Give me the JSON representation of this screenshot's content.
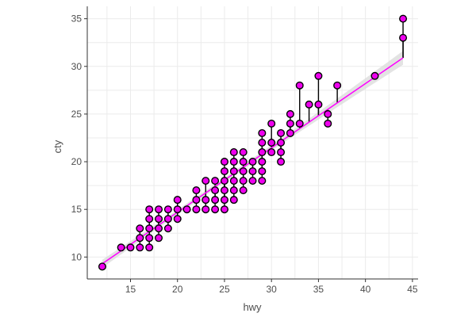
{
  "chart_data": {
    "type": "scatter",
    "title": "",
    "xlabel": "hwy",
    "ylabel": "cty",
    "xlim": [
      10.4,
      45.6
    ],
    "ylim": [
      7.7,
      36.3
    ],
    "x_ticks": [
      15,
      20,
      25,
      30,
      35,
      40,
      45
    ],
    "y_ticks": [
      10,
      15,
      20,
      25,
      30,
      35
    ],
    "x_tick_labels": [
      "15",
      "20",
      "25",
      "30",
      "35",
      "40",
      "45"
    ],
    "y_tick_labels": [
      "10",
      "15",
      "20",
      "25",
      "30",
      "35"
    ],
    "grid": true,
    "fit_line": {
      "method": "lm",
      "x_range": [
        12,
        44
      ],
      "y_range": [
        9.3,
        30.9
      ],
      "se_band": true
    },
    "points": [
      [
        12,
        9
      ],
      [
        14,
        11
      ],
      [
        15,
        11
      ],
      [
        16,
        11
      ],
      [
        16,
        12
      ],
      [
        16,
        13
      ],
      [
        17,
        11
      ],
      [
        17,
        12
      ],
      [
        17,
        13
      ],
      [
        17,
        14
      ],
      [
        17,
        15
      ],
      [
        18,
        12
      ],
      [
        18,
        13
      ],
      [
        18,
        14
      ],
      [
        18,
        15
      ],
      [
        19,
        13
      ],
      [
        19,
        14
      ],
      [
        19,
        15
      ],
      [
        20,
        14
      ],
      [
        20,
        15
      ],
      [
        20,
        16
      ],
      [
        21,
        15
      ],
      [
        22,
        15
      ],
      [
        22,
        16
      ],
      [
        22,
        17
      ],
      [
        23,
        15
      ],
      [
        23,
        16
      ],
      [
        23,
        18
      ],
      [
        24,
        15
      ],
      [
        24,
        16
      ],
      [
        24,
        17
      ],
      [
        24,
        18
      ],
      [
        25,
        15
      ],
      [
        25,
        16
      ],
      [
        25,
        17
      ],
      [
        25,
        18
      ],
      [
        25,
        19
      ],
      [
        25,
        20
      ],
      [
        26,
        16
      ],
      [
        26,
        17
      ],
      [
        26,
        18
      ],
      [
        26,
        19
      ],
      [
        26,
        20
      ],
      [
        26,
        21
      ],
      [
        27,
        17
      ],
      [
        27,
        18
      ],
      [
        27,
        19
      ],
      [
        27,
        20
      ],
      [
        27,
        21
      ],
      [
        28,
        18
      ],
      [
        28,
        19
      ],
      [
        28,
        20
      ],
      [
        29,
        18
      ],
      [
        29,
        19
      ],
      [
        29,
        20
      ],
      [
        29,
        21
      ],
      [
        29,
        22
      ],
      [
        29,
        23
      ],
      [
        30,
        21
      ],
      [
        30,
        22
      ],
      [
        30,
        24
      ],
      [
        31,
        20
      ],
      [
        31,
        21
      ],
      [
        31,
        22
      ],
      [
        31,
        23
      ],
      [
        32,
        23
      ],
      [
        32,
        24
      ],
      [
        32,
        25
      ],
      [
        33,
        24
      ],
      [
        33,
        28
      ],
      [
        34,
        26
      ],
      [
        35,
        26
      ],
      [
        35,
        29
      ],
      [
        36,
        24
      ],
      [
        36,
        25
      ],
      [
        37,
        28
      ],
      [
        41,
        29
      ],
      [
        44,
        33
      ],
      [
        44,
        35
      ]
    ],
    "point_fill": "#ee00ee",
    "point_stroke": "#000000",
    "line_color": "#ff00ff",
    "band_color": "#d9d9d9",
    "segment_color": "#000000"
  }
}
